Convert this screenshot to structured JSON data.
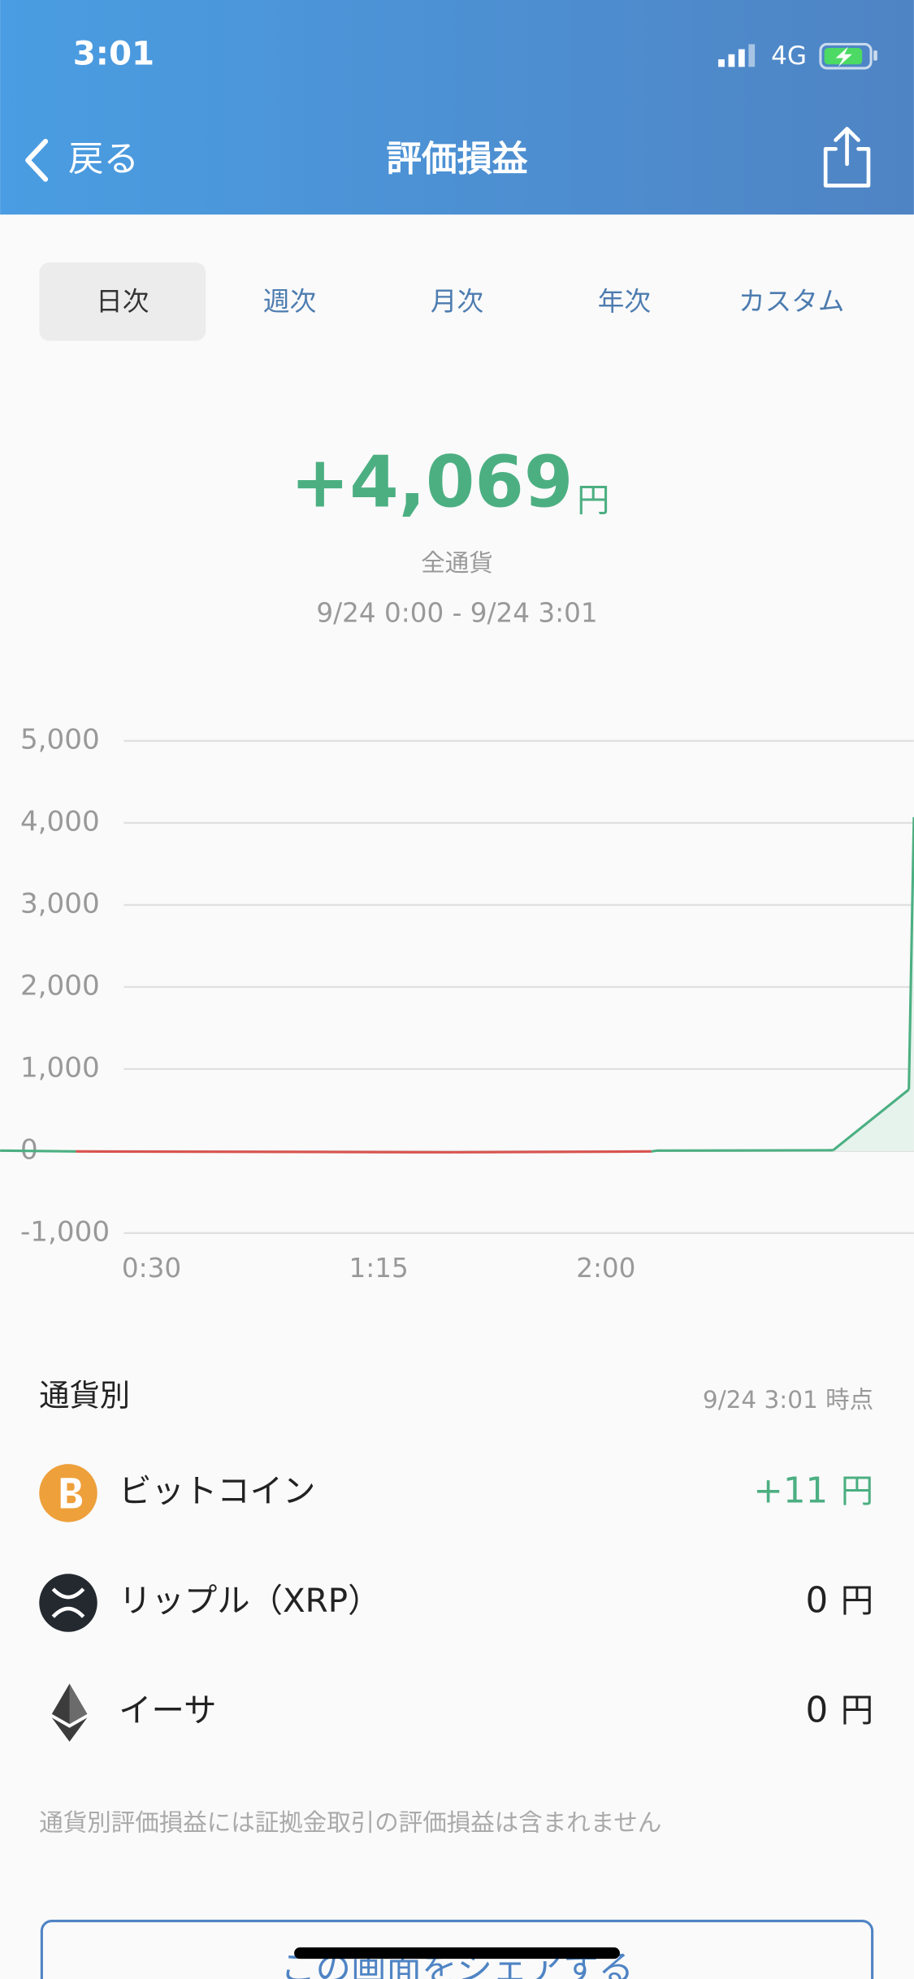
{
  "status_bar": {
    "time": "3:01",
    "network": "4G"
  },
  "nav": {
    "back": "戻る",
    "title": "評価損益"
  },
  "tabs": {
    "items": [
      "日次",
      "週次",
      "月次",
      "年次",
      "カスタム"
    ],
    "selected": 0
  },
  "summary": {
    "amount": "+4,069",
    "unit": "円",
    "scope": "全通貨",
    "range": "9/24 0:00 - 9/24 3:01",
    "color": "#4caf82"
  },
  "chart_data": {
    "type": "line",
    "x": [
      "0:00",
      "0:15",
      "1:30",
      "2:09",
      "2:10",
      "2:45",
      "3:00",
      "3:01"
    ],
    "values": [
      5,
      -5,
      -15,
      -5,
      5,
      10,
      750,
      4069
    ],
    "positive_color": "#4caf82",
    "negative_color": "#d9534f",
    "area_color": "#e6f3ec",
    "xlim": [
      "0:00",
      "3:01"
    ],
    "xticks": [
      "0:30",
      "1:15",
      "2:00"
    ],
    "ylim": [
      -1000,
      5000
    ],
    "yticks": [
      {
        "value": -1000,
        "label": "-1,000"
      },
      0,
      {
        "value": 1000,
        "label": "1,000"
      },
      {
        "value": 2000,
        "label": "2,000"
      },
      {
        "value": 3000,
        "label": "3,000"
      },
      {
        "value": 4000,
        "label": "4,000"
      },
      {
        "value": 5000,
        "label": "5,000"
      }
    ],
    "grid": true
  },
  "breakdown": {
    "title": "通貨別",
    "timestamp": "9/24 3:01 時点",
    "unit": "円",
    "rows": [
      {
        "name": "ビットコイン",
        "value_label": "+11",
        "color": "#4caf82"
      },
      {
        "name": "リップル（XRP）",
        "value_label": "0",
        "color": "#222222"
      },
      {
        "name": "イーサ",
        "value_label": "0",
        "color": "#222222"
      }
    ]
  },
  "note": "通貨別評価損益には証拠金取引の評価損益は含まれません",
  "share_button": "この画面をシェアする"
}
